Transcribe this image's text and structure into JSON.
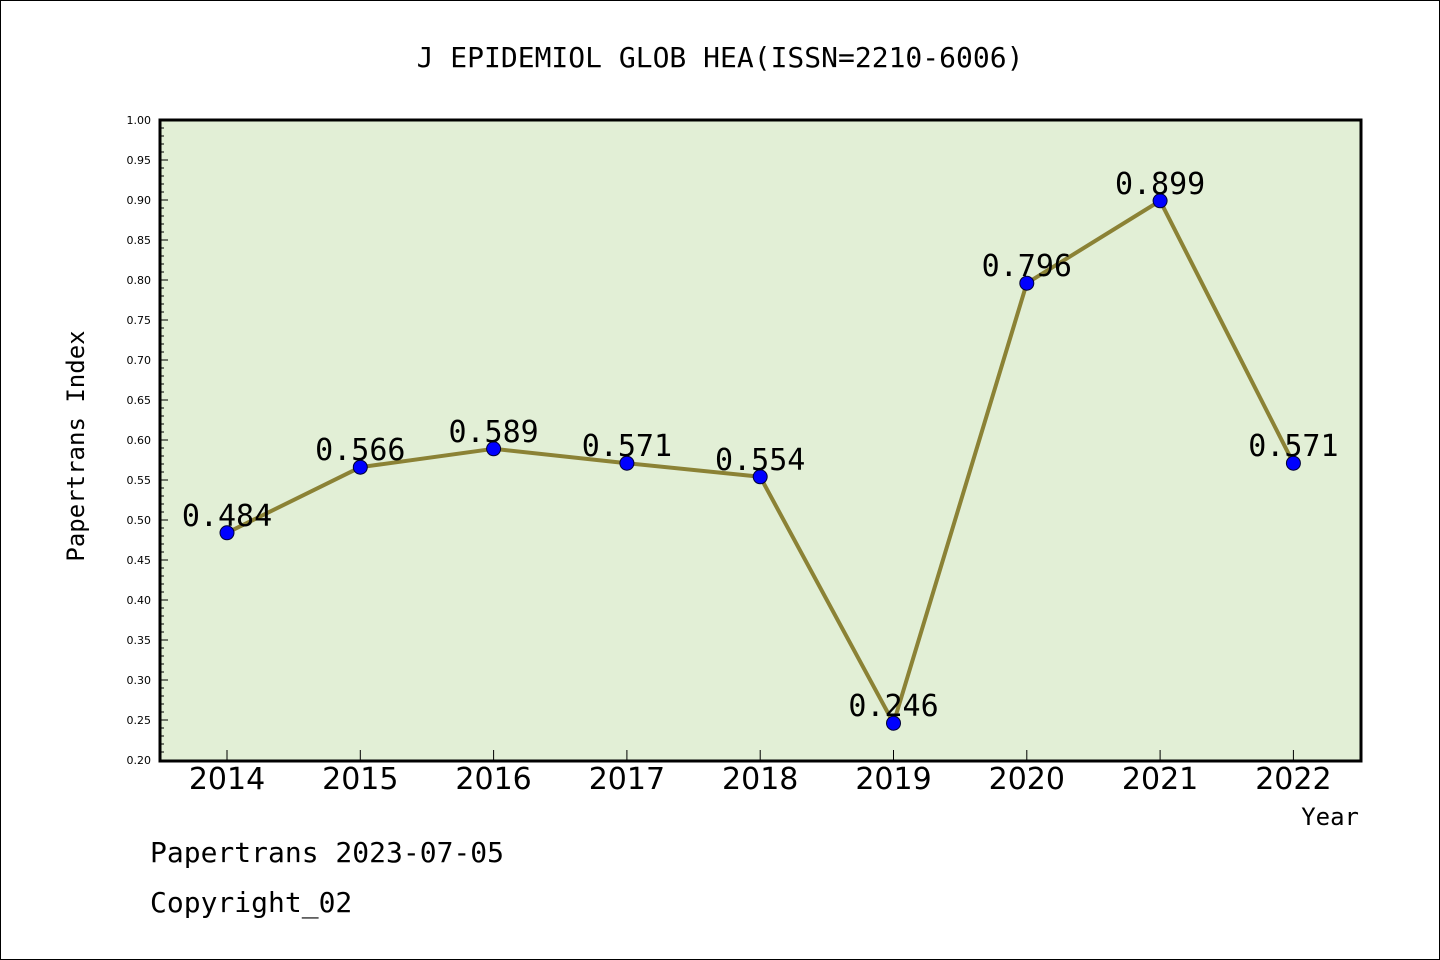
{
  "chart_data": {
    "type": "line",
    "title": "J EPIDEMIOL GLOB HEA(ISSN=2210-6006)",
    "xlabel": "Year",
    "ylabel": "Papertrans Index",
    "categories": [
      "2014",
      "2015",
      "2016",
      "2017",
      "2018",
      "2019",
      "2020",
      "2021",
      "2022"
    ],
    "values": [
      0.484,
      0.566,
      0.589,
      0.571,
      0.554,
      0.246,
      0.796,
      0.899,
      0.571
    ],
    "data_labels": [
      "0.484",
      "0.566",
      "0.589",
      "0.571",
      "0.554",
      "0.246",
      "0.796",
      "0.899",
      "0.571"
    ],
    "ylim": [
      0.2,
      1.0
    ],
    "yticks": [
      "0.20",
      "0.25",
      "0.30",
      "0.35",
      "0.40",
      "0.45",
      "0.50",
      "0.55",
      "0.60",
      "0.65",
      "0.70",
      "0.75",
      "0.80",
      "0.85",
      "0.90",
      "0.95",
      "1.00"
    ],
    "grid": false,
    "colors": {
      "plot_background": "#e2efd6",
      "line": "#8b8235",
      "marker": "#0000ff"
    }
  },
  "footer": {
    "line1": "Papertrans 2023-07-05",
    "line2": "Copyright_02"
  }
}
